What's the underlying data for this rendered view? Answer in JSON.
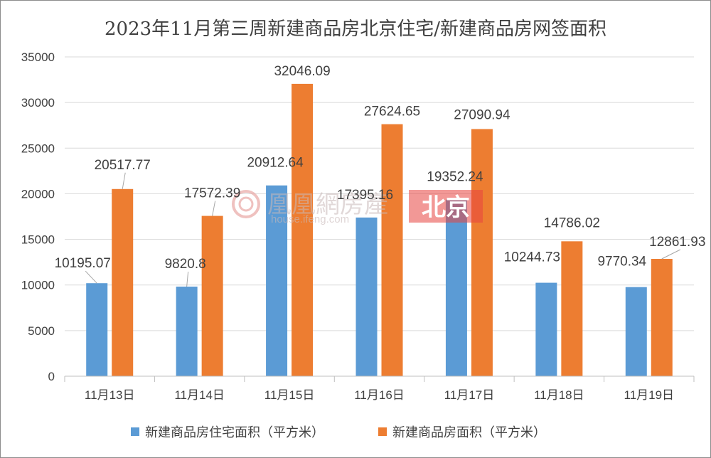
{
  "chart_data": {
    "type": "bar",
    "title": "2023年11月第三周新建商品房北京住宅/新建商品房网签面积",
    "categories": [
      "11月13日",
      "11月14日",
      "11月15日",
      "11月16日",
      "11月17日",
      "11月18日",
      "11月19日"
    ],
    "series": [
      {
        "name": "新建商品房住宅面积（平方米）",
        "color": "#5B9BD5",
        "values": [
          10195.07,
          9820.8,
          20912.64,
          17395.16,
          19352.24,
          10244.73,
          9770.34
        ],
        "labels": [
          "10195.07",
          "9820.8",
          "20912.64",
          "17395.16",
          "19352.24",
          "10244.73",
          "9770.34"
        ]
      },
      {
        "name": "新建商品房面积（平方米）",
        "color": "#ED7D31",
        "values": [
          20517.77,
          17572.39,
          32046.09,
          27624.65,
          27090.94,
          14786.02,
          12861.93
        ],
        "labels": [
          "20517.77",
          "17572.39",
          "32046.09",
          "27624.65",
          "27090.94",
          "14786.02",
          "12861.93"
        ]
      }
    ],
    "ylim": [
      0,
      35000
    ],
    "yticks": [
      0,
      5000,
      10000,
      15000,
      20000,
      25000,
      30000,
      35000
    ],
    "grid": true,
    "legend_position": "bottom"
  },
  "watermark": {
    "brand": "凰凰網房產",
    "site": "house.ifeng.com",
    "city": "北京",
    "city_color": "#E8433F"
  }
}
